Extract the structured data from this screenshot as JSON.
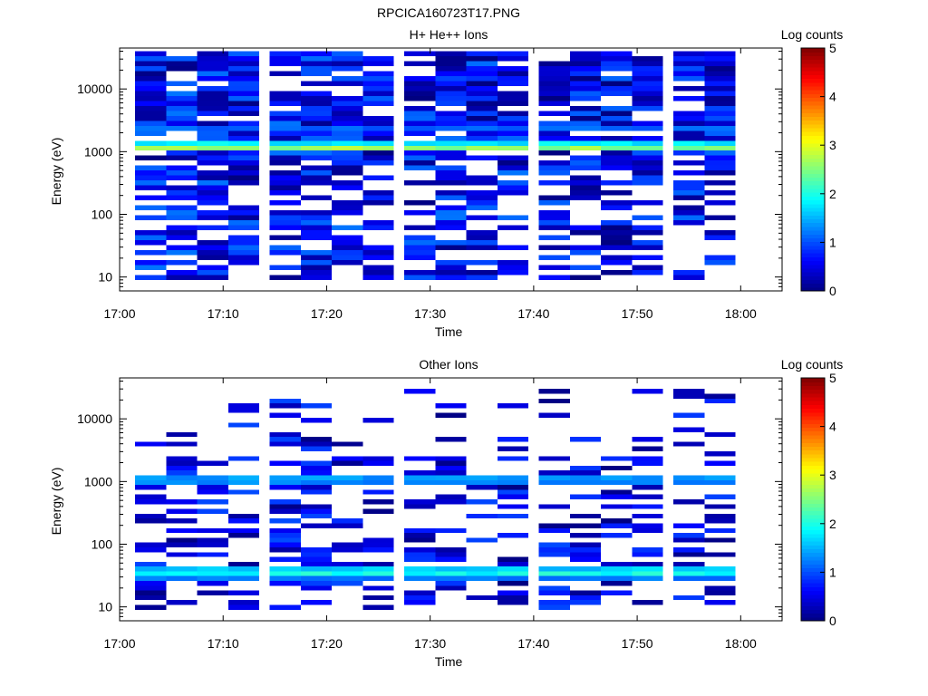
{
  "figure_title": "RPCICA160723T17.PNG",
  "chart_data": [
    {
      "type": "heatmap",
      "title": "H+ He++ Ions",
      "xlabel": "Time",
      "ylabel": "Energy (eV)",
      "x_ticks": [
        "17:00",
        "17:10",
        "17:20",
        "17:30",
        "17:40",
        "17:50",
        "18:00"
      ],
      "y_ticks": [
        "10",
        "100",
        "1000",
        "10000"
      ],
      "yscale": "log",
      "xlim": [
        "17:00",
        "18:04"
      ],
      "ylim": [
        6,
        45000
      ],
      "colorbar": {
        "label": "Log counts",
        "ticks": [
          "0",
          "1",
          "2",
          "3",
          "4",
          "5"
        ],
        "range": [
          0,
          5
        ],
        "colormap": "jet"
      },
      "time_bins": [
        "17:03",
        "17:06",
        "17:09",
        "17:12",
        "17:16",
        "17:19",
        "17:22",
        "17:25",
        "17:29",
        "17:32",
        "17:35",
        "17:38",
        "17:42",
        "17:45",
        "17:48",
        "17:51",
        "17:55",
        "17:58"
      ],
      "bands": [
        {
          "energy_range": [
            1000,
            1400
          ],
          "peak_log_counts": 3.0,
          "note": "strong continuous band near 1 keV"
        },
        {
          "energy_range": [
            2000,
            2400
          ],
          "peak_log_counts": 1.8,
          "note": "weaker band near 2 keV"
        }
      ],
      "background_log_counts": [
        0.0,
        1.2
      ],
      "energy_range_observed": [
        9,
        40000
      ]
    },
    {
      "type": "heatmap",
      "title": "Other Ions",
      "xlabel": "Time",
      "ylabel": "Energy (eV)",
      "x_ticks": [
        "17:00",
        "17:10",
        "17:20",
        "17:30",
        "17:40",
        "17:50",
        "18:00"
      ],
      "y_ticks": [
        "10",
        "100",
        "1000",
        "10000"
      ],
      "yscale": "log",
      "xlim": [
        "17:00",
        "18:04"
      ],
      "ylim": [
        6,
        45000
      ],
      "colorbar": {
        "label": "Log counts",
        "ticks": [
          "0",
          "1",
          "2",
          "3",
          "4",
          "5"
        ],
        "range": [
          0,
          5
        ],
        "colormap": "jet"
      },
      "time_bins": [
        "17:03",
        "17:06",
        "17:09",
        "17:12",
        "17:16",
        "17:19",
        "17:22",
        "17:25",
        "17:29",
        "17:32",
        "17:35",
        "17:38",
        "17:42",
        "17:45",
        "17:48",
        "17:51",
        "17:55",
        "17:58"
      ],
      "bands": [
        {
          "energy_range": [
            900,
            1250
          ],
          "peak_log_counts": 1.8,
          "note": "band near 1 keV"
        },
        {
          "energy_range": [
            28,
            45
          ],
          "peak_log_counts": 2.2,
          "note": "strong band near 35 eV"
        }
      ],
      "background_log_counts": [
        0.0,
        1.0
      ],
      "energy_range_observed": [
        9,
        30000
      ]
    }
  ]
}
